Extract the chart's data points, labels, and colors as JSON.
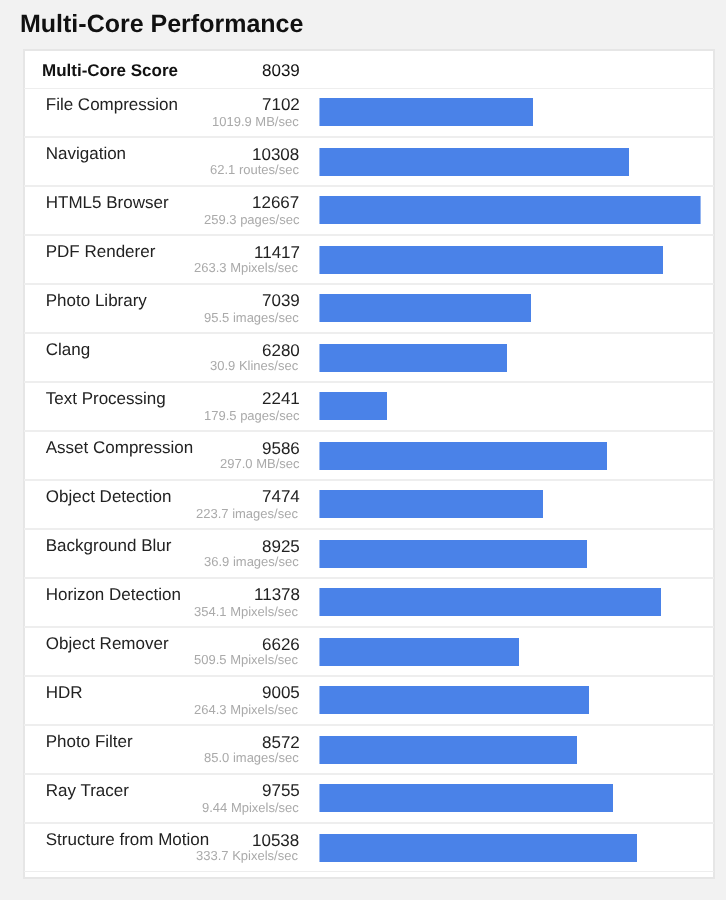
{
  "chart_data": {
    "type": "bar",
    "orientation": "horizontal",
    "title": "Multi-Core Performance",
    "tick_labels": "y",
    "data_labels": true,
    "color": "#4a82e8",
    "categories": [
      "File Compression",
      "Navigation",
      "HTML5 Browser",
      "PDF Renderer",
      "Photo Library",
      "Clang",
      "Text Processing",
      "Asset Compression",
      "Object Detection",
      "Background Blur",
      "Horizon Detection",
      "Object Remover",
      "HDR",
      "Photo Filter",
      "Ray Tracer",
      "Structure from Motion"
    ],
    "values": [
      7102,
      10308,
      12667,
      11417,
      7039,
      6280,
      2241,
      9586,
      7474,
      8925,
      11378,
      6626,
      9005,
      8572,
      9755,
      10538
    ],
    "annotations": [
      "Multi-Core Score",
      "8039",
      "1019.9 MB/sec",
      "62.1 routes/sec",
      "259.3 pages/sec",
      "263.3 Mpixels/sec",
      "95.5 images/sec",
      "30.9 Klines/sec",
      "179.5 pages/sec",
      "297.0 MB/sec",
      "223.7 images/sec",
      "36.9 images/sec",
      "354.1 Mpixels/sec",
      "509.5 Mpixels/sec",
      "264.3 Mpixels/sec",
      "85.0 images/sec",
      "9.44 Mpixels/sec",
      "333.7 Kpixels/sec"
    ]
  }
}
